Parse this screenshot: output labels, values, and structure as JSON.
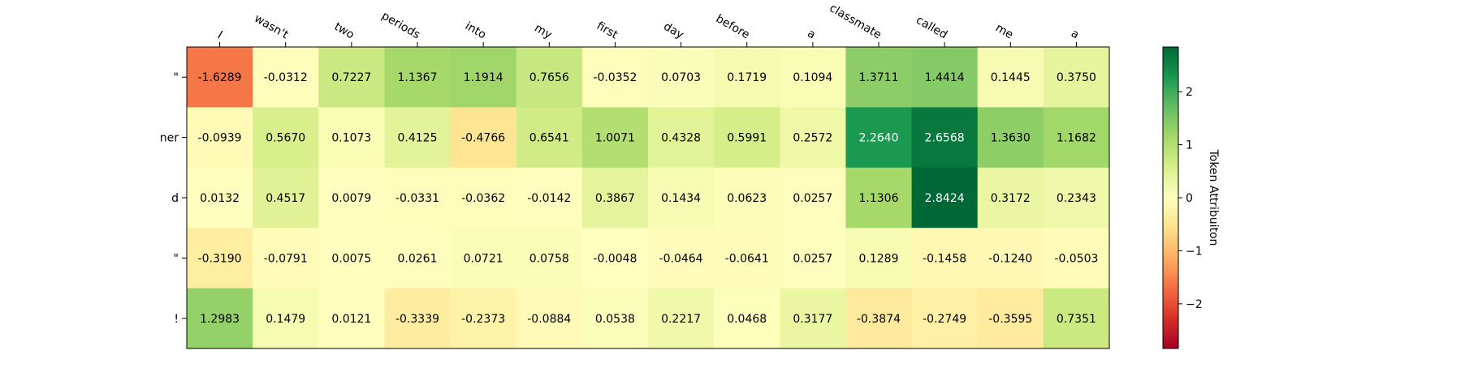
{
  "chart_data": {
    "type": "heatmap",
    "title": "",
    "x_tokens": [
      "I",
      "wasn't",
      "two",
      "periods",
      "into",
      "my",
      "first",
      "day",
      "before",
      "a",
      "classmate",
      "called",
      "me",
      "a"
    ],
    "y_tokens": [
      "\"",
      "ner",
      "d",
      "\"",
      "!"
    ],
    "values": [
      [
        -1.6289,
        -0.0312,
        0.7227,
        1.1367,
        1.1914,
        0.7656,
        -0.0352,
        0.0703,
        0.1719,
        0.1094,
        1.3711,
        1.4414,
        0.1445,
        0.375
      ],
      [
        -0.0939,
        0.567,
        0.1073,
        0.4125,
        -0.4766,
        0.6541,
        1.0071,
        0.4328,
        0.5991,
        0.2572,
        2.264,
        2.6568,
        1.363,
        1.1682
      ],
      [
        0.0132,
        0.4517,
        0.0079,
        -0.0331,
        -0.0362,
        -0.0142,
        0.3867,
        0.1434,
        0.0623,
        0.0257,
        1.1306,
        2.8424,
        0.3172,
        0.2343
      ],
      [
        -0.319,
        -0.0791,
        0.0075,
        0.0261,
        0.0721,
        0.0758,
        -0.0048,
        -0.0464,
        -0.0641,
        0.0257,
        0.1289,
        -0.1458,
        -0.124,
        -0.0503
      ],
      [
        1.2983,
        0.1479,
        0.0121,
        -0.3339,
        -0.2373,
        -0.0884,
        0.0538,
        0.2217,
        0.0468,
        0.3177,
        -0.3874,
        -0.2749,
        -0.3595,
        0.7351
      ]
    ],
    "value_labels": [
      [
        "-1.6289",
        "-0.0312",
        "0.7227",
        "1.1367",
        "1.1914",
        "0.7656",
        "-0.0352",
        "0.0703",
        "0.1719",
        "0.1094",
        "1.3711",
        "1.4414",
        "0.1445",
        "0.3750"
      ],
      [
        "-0.0939",
        "0.5670",
        "0.1073",
        "0.4125",
        "-0.4766",
        "0.6541",
        "1.0071",
        "0.4328",
        "0.5991",
        "0.2572",
        "2.2640",
        "2.6568",
        "1.3630",
        "1.1682"
      ],
      [
        "0.0132",
        "0.4517",
        "0.0079",
        "-0.0331",
        "-0.0362",
        "-0.0142",
        "0.3867",
        "0.1434",
        "0.0623",
        "0.0257",
        "1.1306",
        "2.8424",
        "0.3172",
        "0.2343"
      ],
      [
        "-0.3190",
        "-0.0791",
        "0.0075",
        "0.0261",
        "0.0721",
        "0.0758",
        "-0.0048",
        "-0.0464",
        "-0.0641",
        "0.0257",
        "0.1289",
        "-0.1458",
        "-0.1240",
        "-0.0503"
      ],
      [
        "1.2983",
        "0.1479",
        "0.0121",
        "-0.3339",
        "-0.2373",
        "-0.0884",
        "0.0538",
        "0.2217",
        "0.0468",
        "0.3177",
        "-0.3874",
        "-0.2749",
        "-0.3595",
        "0.7351"
      ]
    ],
    "colormap": "RdYlGn",
    "vmin": -2.8424,
    "vmax": 2.8424,
    "colorbar": {
      "label": "Token Attribuiton",
      "ticks": [
        -2,
        -1,
        0,
        1,
        2
      ],
      "tick_labels": [
        "−2",
        "−1",
        "0",
        "1",
        "2"
      ]
    },
    "grid": false,
    "legend": "none"
  }
}
